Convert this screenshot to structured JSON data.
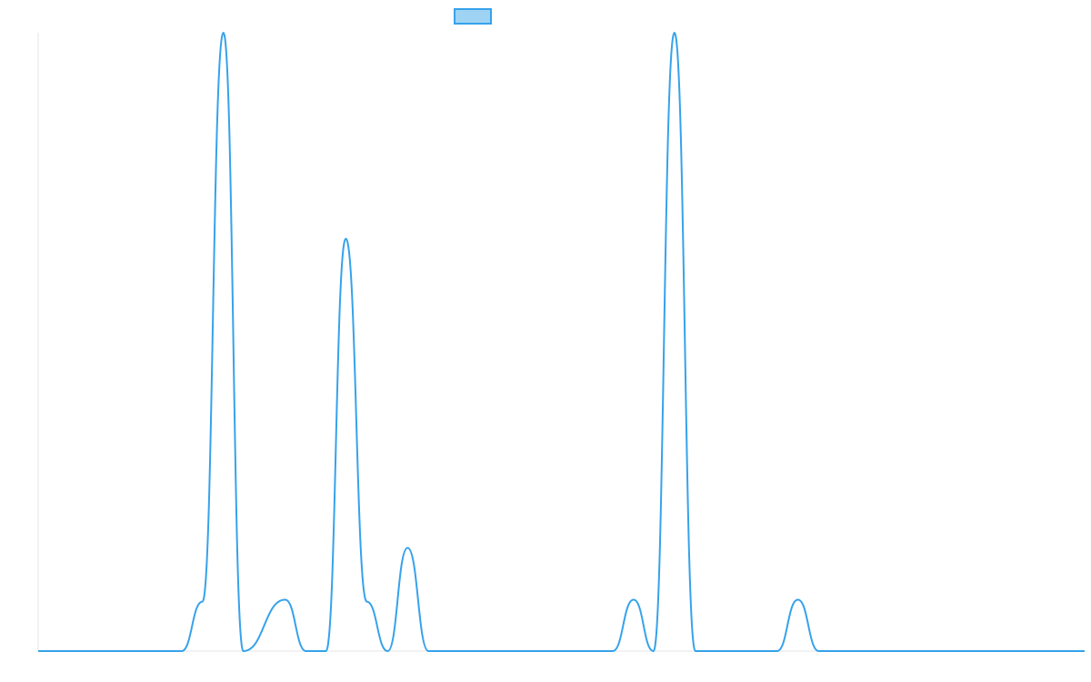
{
  "chart_data": {
    "type": "line",
    "title": "",
    "xlabel": "",
    "ylabel": "",
    "legend": {
      "position": "top-center",
      "swatch_fill": "#9fd3f4",
      "swatch_stroke": "#36a2eb",
      "label": ""
    },
    "grid": false,
    "line_color": "#36a2eb",
    "xlim": [
      0,
      1
    ],
    "ylim": [
      0,
      1
    ],
    "series": [
      {
        "x": [
          0,
          0.137,
          0.157,
          0.177,
          0.196,
          0.236,
          0.256,
          0.275,
          0.294,
          0.314,
          0.334,
          0.353,
          0.373,
          0.393,
          0.549,
          0.569,
          0.588,
          0.608,
          0.628,
          0.706,
          0.726,
          0.746,
          1.0
        ],
        "y": [
          0,
          0,
          0.08,
          1.0,
          0.0,
          0.083,
          0,
          0,
          0.667,
          0.08,
          0,
          0.167,
          0,
          0,
          0,
          0.083,
          0,
          1.0,
          0,
          0,
          0.083,
          0,
          0
        ]
      }
    ]
  }
}
